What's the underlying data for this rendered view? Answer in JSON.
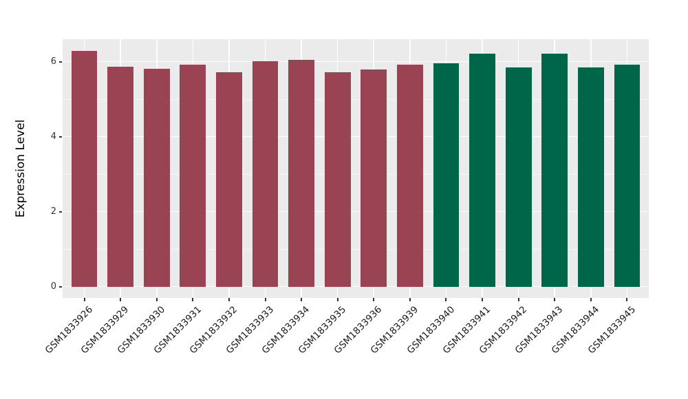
{
  "chart_data": {
    "type": "bar",
    "title": "",
    "xlabel": "",
    "ylabel": "Expression Level",
    "categories": [
      "GSM1833926",
      "GSM1833929",
      "GSM1833930",
      "GSM1833931",
      "GSM1833932",
      "GSM1833933",
      "GSM1833934",
      "GSM1833935",
      "GSM1833936",
      "GSM1833939",
      "GSM1833940",
      "GSM1833941",
      "GSM1833942",
      "GSM1833943",
      "GSM1833944",
      "GSM1833945"
    ],
    "values": [
      6.28,
      5.86,
      5.82,
      5.93,
      5.71,
      6.01,
      6.05,
      5.72,
      5.8,
      5.92,
      5.96,
      6.22,
      5.85,
      6.22,
      5.85,
      5.93
    ],
    "bar_colors": [
      "#9A4352",
      "#9A4352",
      "#9A4352",
      "#9A4352",
      "#9A4352",
      "#9A4352",
      "#9A4352",
      "#9A4352",
      "#9A4352",
      "#9A4352",
      "#006649",
      "#006649",
      "#006649",
      "#006649",
      "#006649",
      "#006649"
    ],
    "ytick_labels": [
      "0",
      "2",
      "4",
      "6"
    ],
    "yticks": [
      0,
      2,
      4,
      6
    ],
    "yticks_minor": [
      1,
      3,
      5
    ],
    "ylim": [
      -0.3,
      6.6
    ],
    "grid": "on",
    "legend": "none",
    "panel_bg": "#EBEBEB",
    "grid_color": "#FFFFFF",
    "tick_label_color": "#333333",
    "axis_title_color": "#000000"
  }
}
